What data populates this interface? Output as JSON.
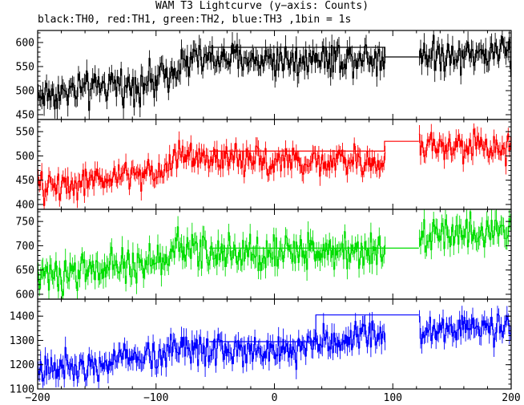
{
  "chart_data": {
    "type": "line",
    "title": "WAM T3 Lightcurve (y−axis: Counts)",
    "subtitle": "black:TH0, red:TH1, green:TH2, blue:TH3 ,1bin = 1s",
    "xlim": [
      -200,
      200
    ],
    "x_ticks": [
      -200,
      -100,
      0,
      100,
      200
    ],
    "x_tick_labels": [
      "−200",
      "−100",
      "0",
      "100",
      "200"
    ],
    "gap": [
      93,
      122
    ],
    "grid": false,
    "panels": [
      {
        "name": "TH0",
        "color": "#000000",
        "ylim": [
          440,
          625
        ],
        "y_ticks": [
          450,
          500,
          550,
          600
        ],
        "y_tick_labels": [
          "450",
          "500",
          "550",
          "600"
        ],
        "trend": [
          [
            -200,
            490
          ],
          [
            -100,
            520
          ],
          [
            -80,
            560
          ],
          [
            -60,
            565
          ],
          [
            0,
            565
          ],
          [
            90,
            570
          ],
          [
            120,
            575
          ],
          [
            200,
            580
          ]
        ],
        "noise": 30,
        "step": [
          [
            -55,
            590
          ],
          [
            93,
            590
          ],
          [
            93,
            570
          ],
          [
            122,
            570
          ]
        ]
      },
      {
        "name": "TH1",
        "color": "#ff0000",
        "ylim": [
          390,
          575
        ],
        "y_ticks": [
          400,
          450,
          500,
          550
        ],
        "y_tick_labels": [
          "400",
          "450",
          "500",
          "550"
        ],
        "trend": [
          [
            -200,
            435
          ],
          [
            -100,
            465
          ],
          [
            -80,
            500
          ],
          [
            -60,
            495
          ],
          [
            0,
            490
          ],
          [
            90,
            485
          ],
          [
            122,
            520
          ],
          [
            200,
            520
          ]
        ],
        "noise": 25,
        "step": [
          [
            -55,
            510
          ],
          [
            93,
            510
          ],
          [
            93,
            530
          ],
          [
            122,
            530
          ]
        ]
      },
      {
        "name": "TH2",
        "color": "#00dd00",
        "ylim": [
          590,
          775
        ],
        "y_ticks": [
          600,
          650,
          700,
          750
        ],
        "y_tick_labels": [
          "600",
          "650",
          "700",
          "750"
        ],
        "trend": [
          [
            -200,
            635
          ],
          [
            -100,
            665
          ],
          [
            -80,
            700
          ],
          [
            -60,
            685
          ],
          [
            0,
            685
          ],
          [
            90,
            695
          ],
          [
            122,
            720
          ],
          [
            200,
            735
          ]
        ],
        "noise": 30,
        "step": [
          [
            -55,
            695
          ],
          [
            122,
            695
          ]
        ]
      },
      {
        "name": "TH3",
        "color": "#0000ff",
        "ylim": [
          1100,
          1470
        ],
        "y_ticks": [
          1100,
          1200,
          1300,
          1400
        ],
        "y_tick_labels": [
          "1100",
          "1200",
          "1300",
          "1400"
        ],
        "trend": [
          [
            -200,
            1185
          ],
          [
            -100,
            1235
          ],
          [
            -80,
            1290
          ],
          [
            -60,
            1260
          ],
          [
            0,
            1265
          ],
          [
            90,
            1320
          ],
          [
            122,
            1340
          ],
          [
            200,
            1360
          ]
        ],
        "noise": 55,
        "step": [
          [
            -55,
            1295
          ],
          [
            35,
            1295
          ],
          [
            35,
            1405
          ],
          [
            122,
            1405
          ]
        ]
      }
    ]
  }
}
